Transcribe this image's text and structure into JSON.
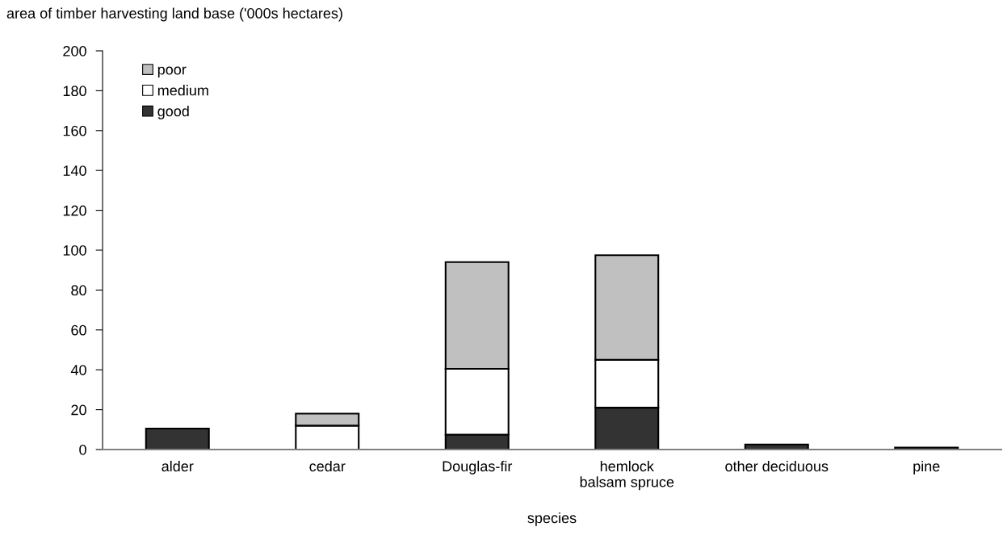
{
  "chart_data": {
    "type": "bar",
    "stacked": true,
    "ylabel": "area of timber harvesting land base ('000s hectares)",
    "xlabel": "species",
    "categories": [
      "alder",
      "cedar",
      "Douglas-fir",
      "hemlock\nbalsam spruce",
      "other deciduous",
      "pine"
    ],
    "series": [
      {
        "name": "good",
        "color": "#333333",
        "values": [
          10.5,
          0,
          7.5,
          21,
          2.5,
          1
        ]
      },
      {
        "name": "medium",
        "color": "#ffffff",
        "values": [
          0,
          12,
          33,
          24,
          0,
          0
        ]
      },
      {
        "name": "poor",
        "color": "#c0c0c0",
        "values": [
          0,
          6,
          53.5,
          52.5,
          0,
          0
        ]
      }
    ],
    "ylim": [
      0,
      200
    ],
    "yticks": [
      0,
      20,
      40,
      60,
      80,
      100,
      120,
      140,
      160,
      180,
      200
    ],
    "grid": false,
    "legend": "top left"
  }
}
